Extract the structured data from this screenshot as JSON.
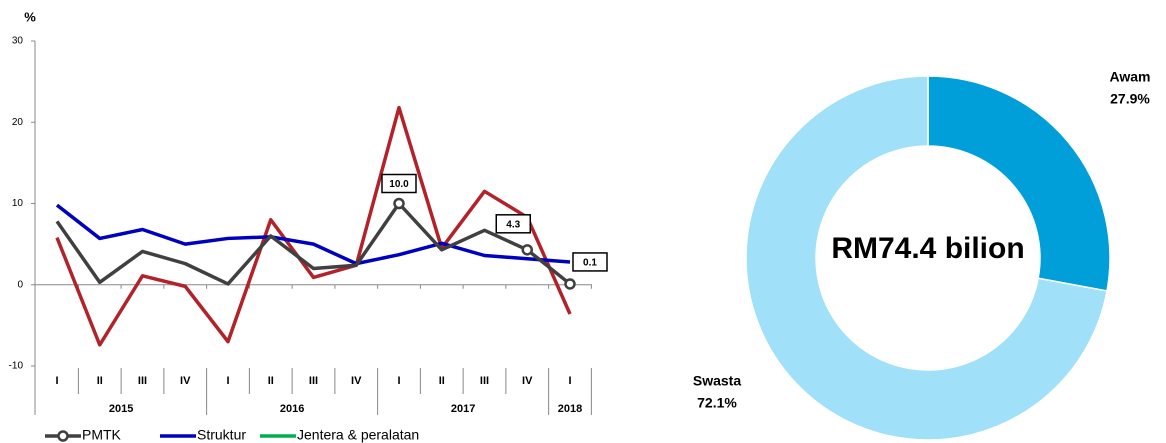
{
  "chart_data": [
    {
      "type": "line",
      "ylabel": "%",
      "categories": [
        "I",
        "II",
        "III",
        "IV",
        "I",
        "II",
        "III",
        "IV",
        "I",
        "II",
        "III",
        "IV",
        "I"
      ],
      "groups": [
        {
          "label": "2015",
          "count": 4
        },
        {
          "label": "2016",
          "count": 4
        },
        {
          "label": "2017",
          "count": 4
        },
        {
          "label": "2018",
          "count": 1
        }
      ],
      "ylim": [
        -10,
        30
      ],
      "yticks": [
        -10,
        0,
        10,
        20,
        30
      ],
      "series": [
        {
          "name": "PMTK",
          "color": "#404040",
          "marker": "circle",
          "values": [
            7.8,
            0.3,
            4.1,
            2.6,
            0.1,
            6.0,
            2.0,
            2.4,
            10.0,
            4.3,
            6.7,
            4.3,
            0.1
          ],
          "value_labels": [
            null,
            null,
            null,
            null,
            null,
            null,
            null,
            null,
            "10.0",
            null,
            null,
            "4.3",
            "0.1"
          ]
        },
        {
          "name": "Struktur",
          "color": "#0000c0",
          "values": [
            9.8,
            5.7,
            6.8,
            5.0,
            5.7,
            5.9,
            5.0,
            2.6,
            3.7,
            5.1,
            3.6,
            3.2,
            2.8
          ]
        },
        {
          "name": "Jentera & peralatan",
          "color": "#b22228",
          "legend_color": "#00b050",
          "values": [
            5.8,
            -7.4,
            1.1,
            -0.2,
            -7.0,
            8.0,
            0.9,
            2.4,
            21.8,
            4.5,
            11.5,
            8.3,
            -3.6
          ]
        }
      ]
    },
    {
      "type": "donut",
      "center_text": "RM74.4 bilion",
      "categories": [
        "Awam",
        "Swasta"
      ],
      "values": [
        27.9,
        72.1
      ],
      "value_labels": [
        "27.9%",
        "72.1%"
      ],
      "colors": [
        "#009fd9",
        "#a0e0f8"
      ]
    }
  ]
}
